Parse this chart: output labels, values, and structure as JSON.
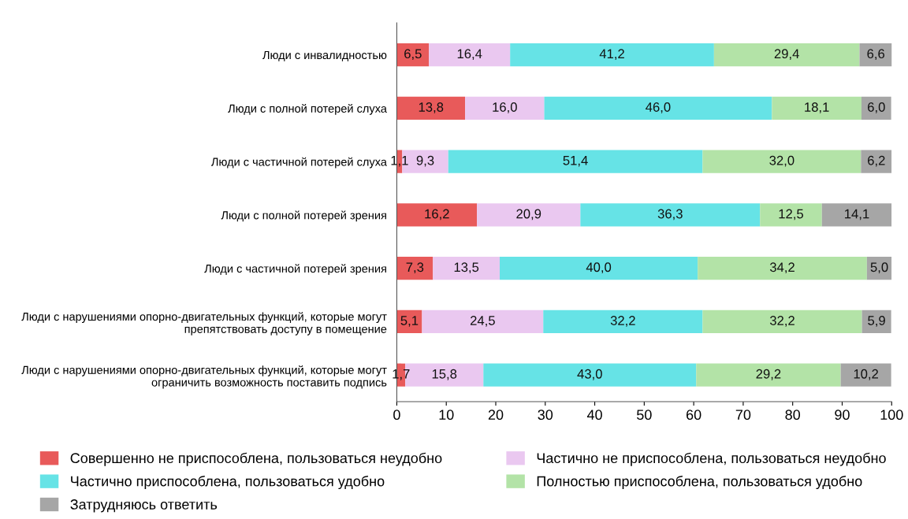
{
  "chart_data": {
    "type": "bar",
    "orientation": "horizontal",
    "stacked": true,
    "grid": false,
    "legend": "bottom",
    "categories": [
      "Люди с инвалидностью",
      "Люди с полной потерей слуха",
      "Люди с частичной потерей слуха",
      "Люди с полной потерей зрения",
      "Люди с частичной потерей зрения",
      "Люди с нарушениями опорно-двигательных функций, которые могут\nпрепятствовать доступу в помещение",
      "Люди с нарушениями опорно-двигательных функций, которые могут\nограничить возможность поставить подпись"
    ],
    "xlim": [
      0,
      100
    ],
    "xticks": [
      0,
      10,
      20,
      30,
      40,
      50,
      60,
      70,
      80,
      90,
      100
    ],
    "series": [
      {
        "name": "Совершенно не приспособлена, пользоваться неудобно",
        "color": "#e85a5a",
        "values": [
          6.5,
          13.8,
          1.1,
          16.2,
          7.3,
          5.1,
          1.7
        ],
        "value_labels": [
          "6,5",
          "13,8",
          "1,1",
          "16,2",
          "7,3",
          "5,1",
          "1,7"
        ]
      },
      {
        "name": "Частично не приспособлена, пользоваться неудобно",
        "color": "#eac8f0",
        "values": [
          16.4,
          16.0,
          9.3,
          20.9,
          13.5,
          24.5,
          15.8
        ],
        "value_labels": [
          "16,4",
          "16,0",
          "9,3",
          "20,9",
          "13,5",
          "24,5",
          "15,8"
        ]
      },
      {
        "name": "Частично приспособлена, пользоваться удобно",
        "color": "#66e3e6",
        "values": [
          41.2,
          46.0,
          51.4,
          36.3,
          40.0,
          32.2,
          43.0
        ],
        "value_labels": [
          "41,2",
          "46,0",
          "51,4",
          "36,3",
          "40,0",
          "32,2",
          "43,0"
        ]
      },
      {
        "name": "Полностью приспособлена, пользоваться удобно",
        "color": "#b3e3a7",
        "values": [
          29.4,
          18.1,
          32.0,
          12.5,
          34.2,
          32.2,
          29.2
        ],
        "value_labels": [
          "29,4",
          "18,1",
          "32,0",
          "12,5",
          "34,2",
          "32,2",
          "29,2"
        ]
      },
      {
        "name": "Затрудняюсь ответить",
        "color": "#a6a6a6",
        "values": [
          6.6,
          6.0,
          6.2,
          14.1,
          5.0,
          5.9,
          10.2
        ],
        "value_labels": [
          "6,6",
          "6,0",
          "6,2",
          "14,1",
          "5,0",
          "5,9",
          "10,2"
        ]
      }
    ]
  }
}
